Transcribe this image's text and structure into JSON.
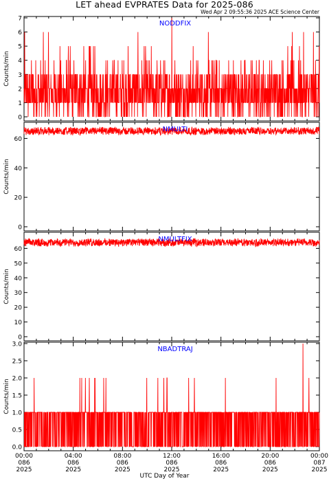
{
  "title": "LET ahead EVPRATES Data for 2025-086",
  "subtitle": "Wed Apr  2 09:55:36 2025 ACE Science Center",
  "x_axis_label": "UTC Day of Year",
  "colors": {
    "series": "#ff0000",
    "panel_label": "#0000ff",
    "axis": "#000000"
  },
  "x_ticks": [
    {
      "time": "00:00",
      "doy": "086",
      "year": "2025"
    },
    {
      "time": "04:00",
      "doy": "086",
      "year": "2025"
    },
    {
      "time": "08:00",
      "doy": "086",
      "year": "2025"
    },
    {
      "time": "12:00",
      "doy": "086",
      "year": "2025"
    },
    {
      "time": "16:00",
      "doy": "086",
      "year": "2025"
    },
    {
      "time": "20:00",
      "doy": "086",
      "year": "2025"
    },
    {
      "time": "00:00",
      "doy": "087",
      "year": "2025"
    }
  ],
  "chart_data": [
    {
      "type": "line",
      "panel_label": "NODDFIX",
      "ylabel": "Counts/min",
      "ylim": [
        0,
        7
      ],
      "yticks": [
        "0",
        "1",
        "2",
        "3",
        "4",
        "5",
        "6",
        "7"
      ],
      "x_range_hours": [
        0,
        24
      ],
      "series": [
        {
          "values_summary": "noisy 1-min counts mostly between 0 and 3, frequent spikes to 4-6, one spike to 7 near 12:00",
          "baseline": 1.5,
          "spike_max": 7
        }
      ]
    },
    {
      "type": "line",
      "panel_label": "NMULTI",
      "ylabel": "Counts/min",
      "ylim": [
        0,
        70
      ],
      "yticks": [
        "0",
        "20",
        "40",
        "60"
      ],
      "x_range_hours": [
        0,
        24
      ],
      "series": [
        {
          "values_summary": "steady around 65 counts/min, fluctuating between ~62 and ~68",
          "baseline": 65,
          "spread": 3
        }
      ]
    },
    {
      "type": "line",
      "panel_label": "NMULTFIX",
      "ylabel": "Counts/min",
      "ylim": [
        0,
        70
      ],
      "yticks": [
        "0",
        "10",
        "20",
        "30",
        "40",
        "50",
        "60"
      ],
      "x_range_hours": [
        0,
        24
      ],
      "series": [
        {
          "values_summary": "steady around 64 counts/min, fluctuating between ~61 and ~67",
          "baseline": 64,
          "spread": 3
        }
      ]
    },
    {
      "type": "line",
      "panel_label": "NBADTRAJ",
      "ylabel": "Counts/min",
      "ylim": [
        0,
        3
      ],
      "yticks": [
        "0.0",
        "0.5",
        "1.0",
        "1.5",
        "2.0",
        "2.5",
        "3.0"
      ],
      "x_range_hours": [
        0,
        24
      ],
      "series": [
        {
          "values_summary": "mostly 0 or 1 counts/min, occasional 2, one spike to 3 near 22:30",
          "baseline": 1,
          "spike_max": 3
        }
      ]
    }
  ]
}
